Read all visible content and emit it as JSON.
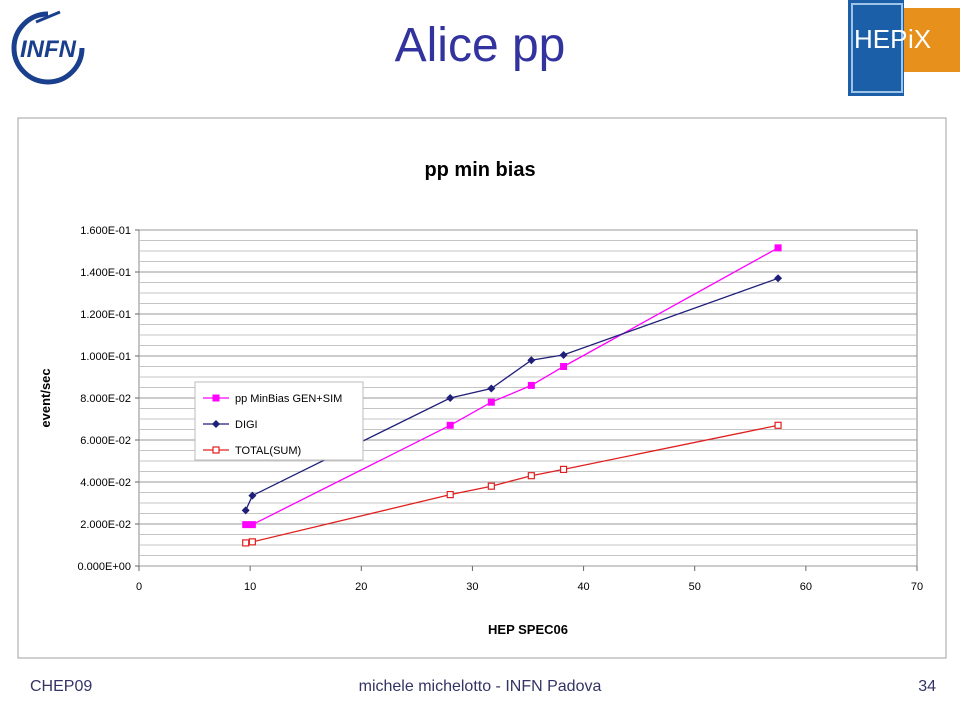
{
  "slide": {
    "title": "Alice pp",
    "footer_left": "CHEP09",
    "footer_center": "michele michelotto - INFN Padova",
    "footer_right": "34"
  },
  "logos": {
    "infn_text": "INFN",
    "hepix_text_a": "HEP",
    "hepix_text_b": "iX",
    "hepix_colors": {
      "blue": "#1a5fa8",
      "orange": "#e8901c"
    }
  },
  "chart_data": {
    "type": "line",
    "title": "pp  min bias",
    "xlabel": "HEP SPEC06",
    "ylabel": "event/sec",
    "xlim": [
      0,
      70
    ],
    "ylim": [
      0,
      0.16
    ],
    "xticks": [
      "0",
      "10",
      "20",
      "30",
      "40",
      "50",
      "60",
      "70"
    ],
    "yticks": [
      "0.000E+00",
      "2.000E-02",
      "4.000E-02",
      "6.000E-02",
      "8.000E-02",
      "1.000E-01",
      "1.200E-01",
      "1.400E-01",
      "1.600E-01"
    ],
    "grid": true,
    "legend_position": "top-left",
    "series": [
      {
        "name": "pp MinBias GEN+SIM",
        "color": "#ff00ff",
        "marker": "filled-square",
        "x": [
          9.6,
          10.2,
          28.0,
          31.7,
          35.3,
          38.2,
          57.5
        ],
        "y": [
          0.0197,
          0.0197,
          0.067,
          0.078,
          0.086,
          0.095,
          0.1515
        ]
      },
      {
        "name": "DIGI",
        "color": "#1f1f7a",
        "marker": "filled-diamond",
        "x": [
          9.6,
          10.2,
          28.0,
          31.7,
          35.3,
          38.2,
          57.5
        ],
        "y": [
          0.0265,
          0.0335,
          0.08,
          0.0845,
          0.098,
          0.1005,
          0.137
        ]
      },
      {
        "name": "TOTAL(SUM)",
        "color": "#e02020",
        "marker": "open-square",
        "x": [
          9.6,
          10.2,
          28.0,
          31.7,
          35.3,
          38.2,
          57.5
        ],
        "y": [
          0.011,
          0.0115,
          0.034,
          0.038,
          0.043,
          0.046,
          0.067
        ]
      }
    ]
  }
}
